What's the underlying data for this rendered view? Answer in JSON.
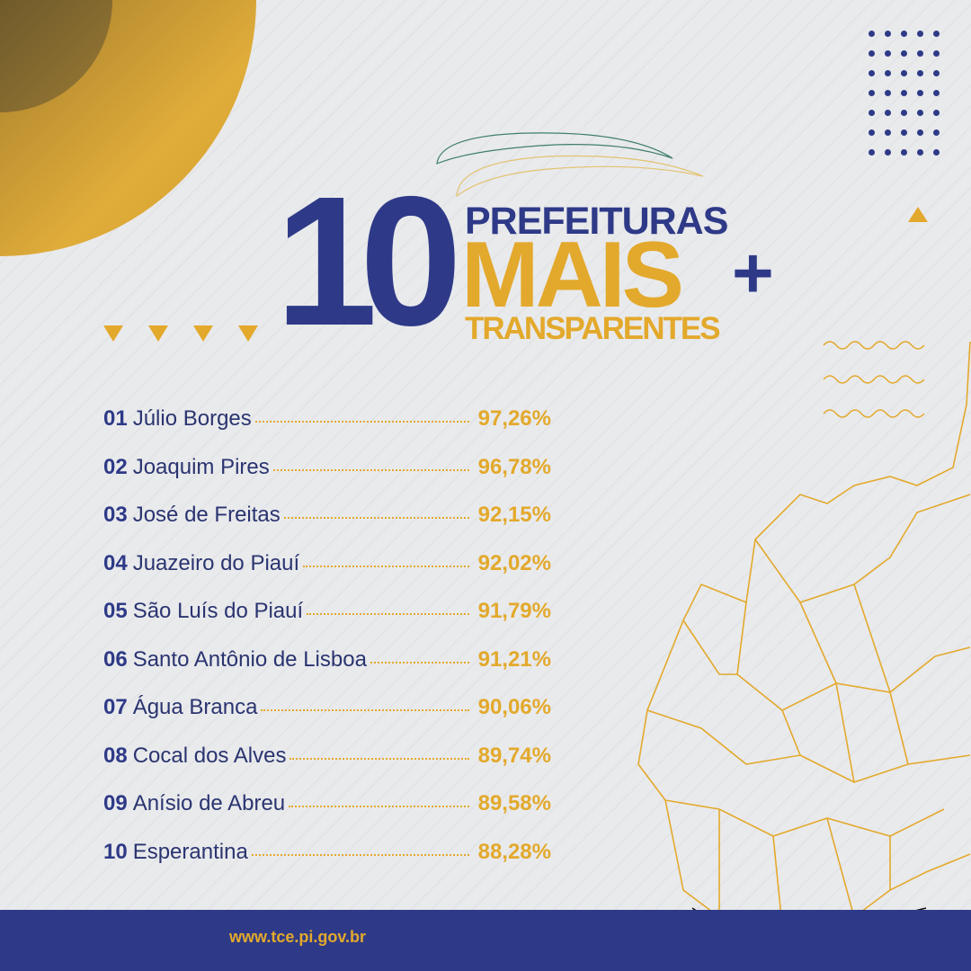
{
  "colors": {
    "navy": "#2e3a87",
    "gold": "#e3a92c",
    "background": "#e8e9eb"
  },
  "title": {
    "number": "10",
    "line1": "PREFEITURAS",
    "line2": "MAIS",
    "plus": "+",
    "line3": "TRANSPARENTES"
  },
  "ranking": [
    {
      "pos": "01",
      "name": "Júlio Borges",
      "pct": "97,26%"
    },
    {
      "pos": "02",
      "name": "Joaquim Pires",
      "pct": "96,78%"
    },
    {
      "pos": "03",
      "name": "José de Freitas",
      "pct": "92,15%"
    },
    {
      "pos": "04",
      "name": "Juazeiro do Piauí",
      "pct": "92,02%"
    },
    {
      "pos": "05",
      "name": "São Luís do Piauí",
      "pct": "91,79%"
    },
    {
      "pos": "06",
      "name": "Santo Antônio de Lisboa",
      "pct": "91,21%"
    },
    {
      "pos": "07",
      "name": "Água Branca",
      "pct": "90,06%"
    },
    {
      "pos": "08",
      "name": "Cocal dos Alves",
      "pct": "89,74%"
    },
    {
      "pos": "09",
      "name": "Anísio de Abreu",
      "pct": "89,58%"
    },
    {
      "pos": "10",
      "name": "Esperantina",
      "pct": "88,28%"
    }
  ],
  "footer": {
    "url": "www.tce.pi.gov.br"
  }
}
